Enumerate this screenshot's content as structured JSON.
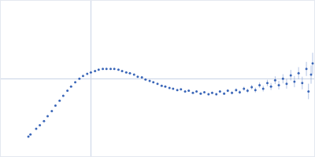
{
  "chart_data": {
    "type": "scatter",
    "color": "#3a66b8",
    "marker": "circle",
    "grid": true,
    "tick_labels": false,
    "x": [
      0.53,
      0.57,
      0.68,
      0.75,
      0.83,
      0.9,
      0.98,
      1.05,
      1.13,
      1.2,
      1.28,
      1.35,
      1.43,
      1.51,
      1.58,
      1.66,
      1.73,
      1.81,
      1.88,
      1.96,
      2.03,
      2.11,
      2.18,
      2.26,
      2.33,
      2.41,
      2.48,
      2.56,
      2.63,
      2.71,
      2.78,
      2.86,
      2.93,
      3.01,
      3.09,
      3.16,
      3.24,
      3.31,
      3.39,
      3.46,
      3.54,
      3.61,
      3.69,
      3.76,
      3.84,
      3.91,
      3.99,
      4.06,
      4.14,
      4.21,
      4.29,
      4.36,
      4.44,
      4.52,
      4.59,
      4.67,
      4.74,
      4.82,
      4.89,
      4.97,
      5.04,
      5.12,
      5.19,
      5.27,
      5.34,
      5.42,
      5.49,
      5.57,
      5.64,
      5.72,
      5.79,
      5.87,
      5.91,
      5.96,
      5.99
    ],
    "values": [
      0.28,
      0.31,
      0.39,
      0.44,
      0.5,
      0.57,
      0.64,
      0.72,
      0.79,
      0.86,
      0.93,
      0.99,
      1.05,
      1.1,
      1.14,
      1.17,
      1.19,
      1.21,
      1.23,
      1.24,
      1.24,
      1.24,
      1.24,
      1.23,
      1.21,
      1.19,
      1.18,
      1.16,
      1.13,
      1.12,
      1.09,
      1.07,
      1.05,
      1.03,
      1.0,
      0.99,
      0.97,
      0.96,
      0.94,
      0.95,
      0.92,
      0.93,
      0.9,
      0.92,
      0.89,
      0.91,
      0.88,
      0.9,
      0.88,
      0.92,
      0.89,
      0.93,
      0.9,
      0.94,
      0.91,
      0.96,
      0.93,
      0.98,
      0.94,
      1.01,
      0.96,
      1.04,
      0.99,
      1.08,
      1.01,
      1.1,
      1.03,
      1.15,
      1.06,
      1.18,
      1.04,
      1.24,
      0.92,
      1.16,
      1.32
    ],
    "errors": [
      0.005,
      0.005,
      0.005,
      0.005,
      0.005,
      0.005,
      0.005,
      0.005,
      0.005,
      0.005,
      0.005,
      0.005,
      0.005,
      0.005,
      0.005,
      0.005,
      0.005,
      0.005,
      0.005,
      0.005,
      0.005,
      0.005,
      0.005,
      0.005,
      0.005,
      0.005,
      0.005,
      0.005,
      0.006,
      0.006,
      0.006,
      0.007,
      0.007,
      0.007,
      0.008,
      0.008,
      0.009,
      0.009,
      0.01,
      0.01,
      0.011,
      0.012,
      0.012,
      0.013,
      0.014,
      0.015,
      0.016,
      0.017,
      0.018,
      0.019,
      0.02,
      0.021,
      0.022,
      0.024,
      0.026,
      0.028,
      0.03,
      0.032,
      0.035,
      0.038,
      0.041,
      0.045,
      0.05,
      0.055,
      0.06,
      0.065,
      0.07,
      0.075,
      0.08,
      0.085,
      0.09,
      0.1,
      0.11,
      0.13,
      0.15
    ],
    "xlim": [
      0,
      6.02
    ],
    "ylim": [
      0,
      2.208
    ],
    "xticks": [
      1.732
    ],
    "yticks": [
      1.104
    ]
  }
}
